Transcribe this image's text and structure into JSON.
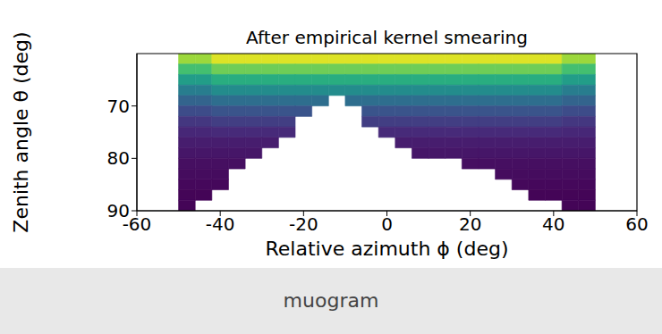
{
  "chart_data": {
    "type": "heatmap",
    "title": "After empirical kernel smearing",
    "caption": "muogram",
    "xlabel": "Relative azimuth ϕ (deg)",
    "ylabel": "Zenith angle θ (deg)",
    "color": "viridis",
    "color_range": [
      0,
      1
    ],
    "xlim": [
      -60,
      60
    ],
    "xticks": [
      -60,
      -40,
      -20,
      0,
      20,
      40,
      60
    ],
    "ylim": [
      60,
      90
    ],
    "yticks": [
      70,
      80,
      90
    ],
    "x_bins": [
      -50,
      -46,
      -42,
      -38,
      -34,
      -30,
      -26,
      -22,
      -18,
      -14,
      -10,
      -6,
      -2,
      2,
      6,
      10,
      14,
      18,
      22,
      26,
      30,
      34,
      38,
      42,
      46,
      50
    ],
    "y_bins": [
      60,
      62,
      64,
      66,
      68,
      70,
      72,
      74,
      76,
      78,
      80,
      82,
      84,
      86,
      88,
      90
    ],
    "values": [
      [
        0.85,
        0.85,
        0.95,
        0.95,
        0.95,
        0.95,
        0.95,
        0.95,
        0.95,
        0.95,
        0.95,
        0.95,
        0.95,
        0.95,
        0.95,
        0.95,
        0.95,
        0.95,
        0.95,
        0.95,
        0.95,
        0.95,
        0.95,
        0.85,
        0.85
      ],
      [
        0.7,
        0.7,
        0.78,
        0.78,
        0.78,
        0.78,
        0.78,
        0.78,
        0.78,
        0.78,
        0.78,
        0.78,
        0.78,
        0.78,
        0.78,
        0.78,
        0.78,
        0.78,
        0.78,
        0.78,
        0.78,
        0.78,
        0.78,
        0.7,
        0.7
      ],
      [
        0.55,
        0.55,
        0.62,
        0.62,
        0.62,
        0.62,
        0.62,
        0.62,
        0.62,
        0.62,
        0.62,
        0.62,
        0.62,
        0.62,
        0.62,
        0.62,
        0.62,
        0.62,
        0.62,
        0.62,
        0.62,
        0.62,
        0.62,
        0.55,
        0.55
      ],
      [
        0.42,
        0.42,
        0.48,
        0.48,
        0.48,
        0.48,
        0.48,
        0.48,
        0.48,
        0.48,
        0.48,
        0.48,
        0.48,
        0.48,
        0.48,
        0.48,
        0.48,
        0.48,
        0.48,
        0.48,
        0.48,
        0.48,
        0.48,
        0.42,
        0.42
      ],
      [
        0.32,
        0.32,
        0.36,
        0.36,
        0.36,
        0.36,
        0.36,
        0.36,
        0.36,
        null,
        0.36,
        0.36,
        0.36,
        0.36,
        0.36,
        0.36,
        0.36,
        0.36,
        0.36,
        0.36,
        0.36,
        0.36,
        0.36,
        0.32,
        0.32
      ],
      [
        0.23,
        0.23,
        0.26,
        0.26,
        0.26,
        0.26,
        0.26,
        0.26,
        null,
        null,
        null,
        0.26,
        0.26,
        0.26,
        0.26,
        0.26,
        0.26,
        0.26,
        0.26,
        0.26,
        0.26,
        0.26,
        0.26,
        0.23,
        0.23
      ],
      [
        0.16,
        0.16,
        0.18,
        0.18,
        0.18,
        0.18,
        0.18,
        null,
        null,
        null,
        null,
        0.18,
        0.18,
        0.18,
        0.18,
        0.18,
        0.18,
        0.18,
        0.18,
        0.18,
        0.18,
        0.18,
        0.18,
        0.16,
        0.16
      ],
      [
        0.11,
        0.11,
        0.12,
        0.12,
        0.12,
        0.12,
        0.12,
        null,
        null,
        null,
        null,
        null,
        0.12,
        0.12,
        0.12,
        0.12,
        0.12,
        0.12,
        0.12,
        0.12,
        0.12,
        0.12,
        0.12,
        0.11,
        0.11
      ],
      [
        0.08,
        0.08,
        0.08,
        0.08,
        0.08,
        0.08,
        null,
        null,
        null,
        null,
        null,
        null,
        null,
        0.08,
        0.08,
        0.08,
        0.08,
        0.08,
        0.08,
        0.08,
        0.08,
        0.08,
        0.08,
        0.08,
        0.08
      ],
      [
        0.06,
        0.06,
        0.06,
        0.06,
        0.06,
        null,
        null,
        null,
        null,
        null,
        null,
        null,
        null,
        null,
        0.06,
        0.06,
        0.06,
        0.06,
        0.06,
        0.06,
        0.06,
        0.06,
        0.06,
        0.06,
        0.06
      ],
      [
        0.04,
        0.04,
        0.04,
        0.04,
        null,
        null,
        null,
        null,
        null,
        null,
        null,
        null,
        null,
        null,
        null,
        null,
        null,
        0.04,
        0.04,
        0.04,
        0.04,
        0.04,
        0.04,
        0.04,
        0.04
      ],
      [
        0.03,
        0.03,
        0.03,
        null,
        null,
        null,
        null,
        null,
        null,
        null,
        null,
        null,
        null,
        null,
        null,
        null,
        null,
        null,
        null,
        0.03,
        0.03,
        0.03,
        0.03,
        0.03,
        0.03
      ],
      [
        0.02,
        0.02,
        0.02,
        null,
        null,
        null,
        null,
        null,
        null,
        null,
        null,
        null,
        null,
        null,
        null,
        null,
        null,
        null,
        null,
        null,
        0.02,
        0.02,
        0.02,
        0.02,
        0.02
      ],
      [
        0.01,
        0.01,
        null,
        null,
        null,
        null,
        null,
        null,
        null,
        null,
        null,
        null,
        null,
        null,
        null,
        null,
        null,
        null,
        null,
        null,
        null,
        0.01,
        0.01,
        0.01,
        0.01
      ],
      [
        0.01,
        null,
        null,
        null,
        null,
        null,
        null,
        null,
        null,
        null,
        null,
        null,
        null,
        null,
        null,
        null,
        null,
        null,
        null,
        null,
        null,
        null,
        null,
        0.01,
        0.01
      ]
    ]
  }
}
